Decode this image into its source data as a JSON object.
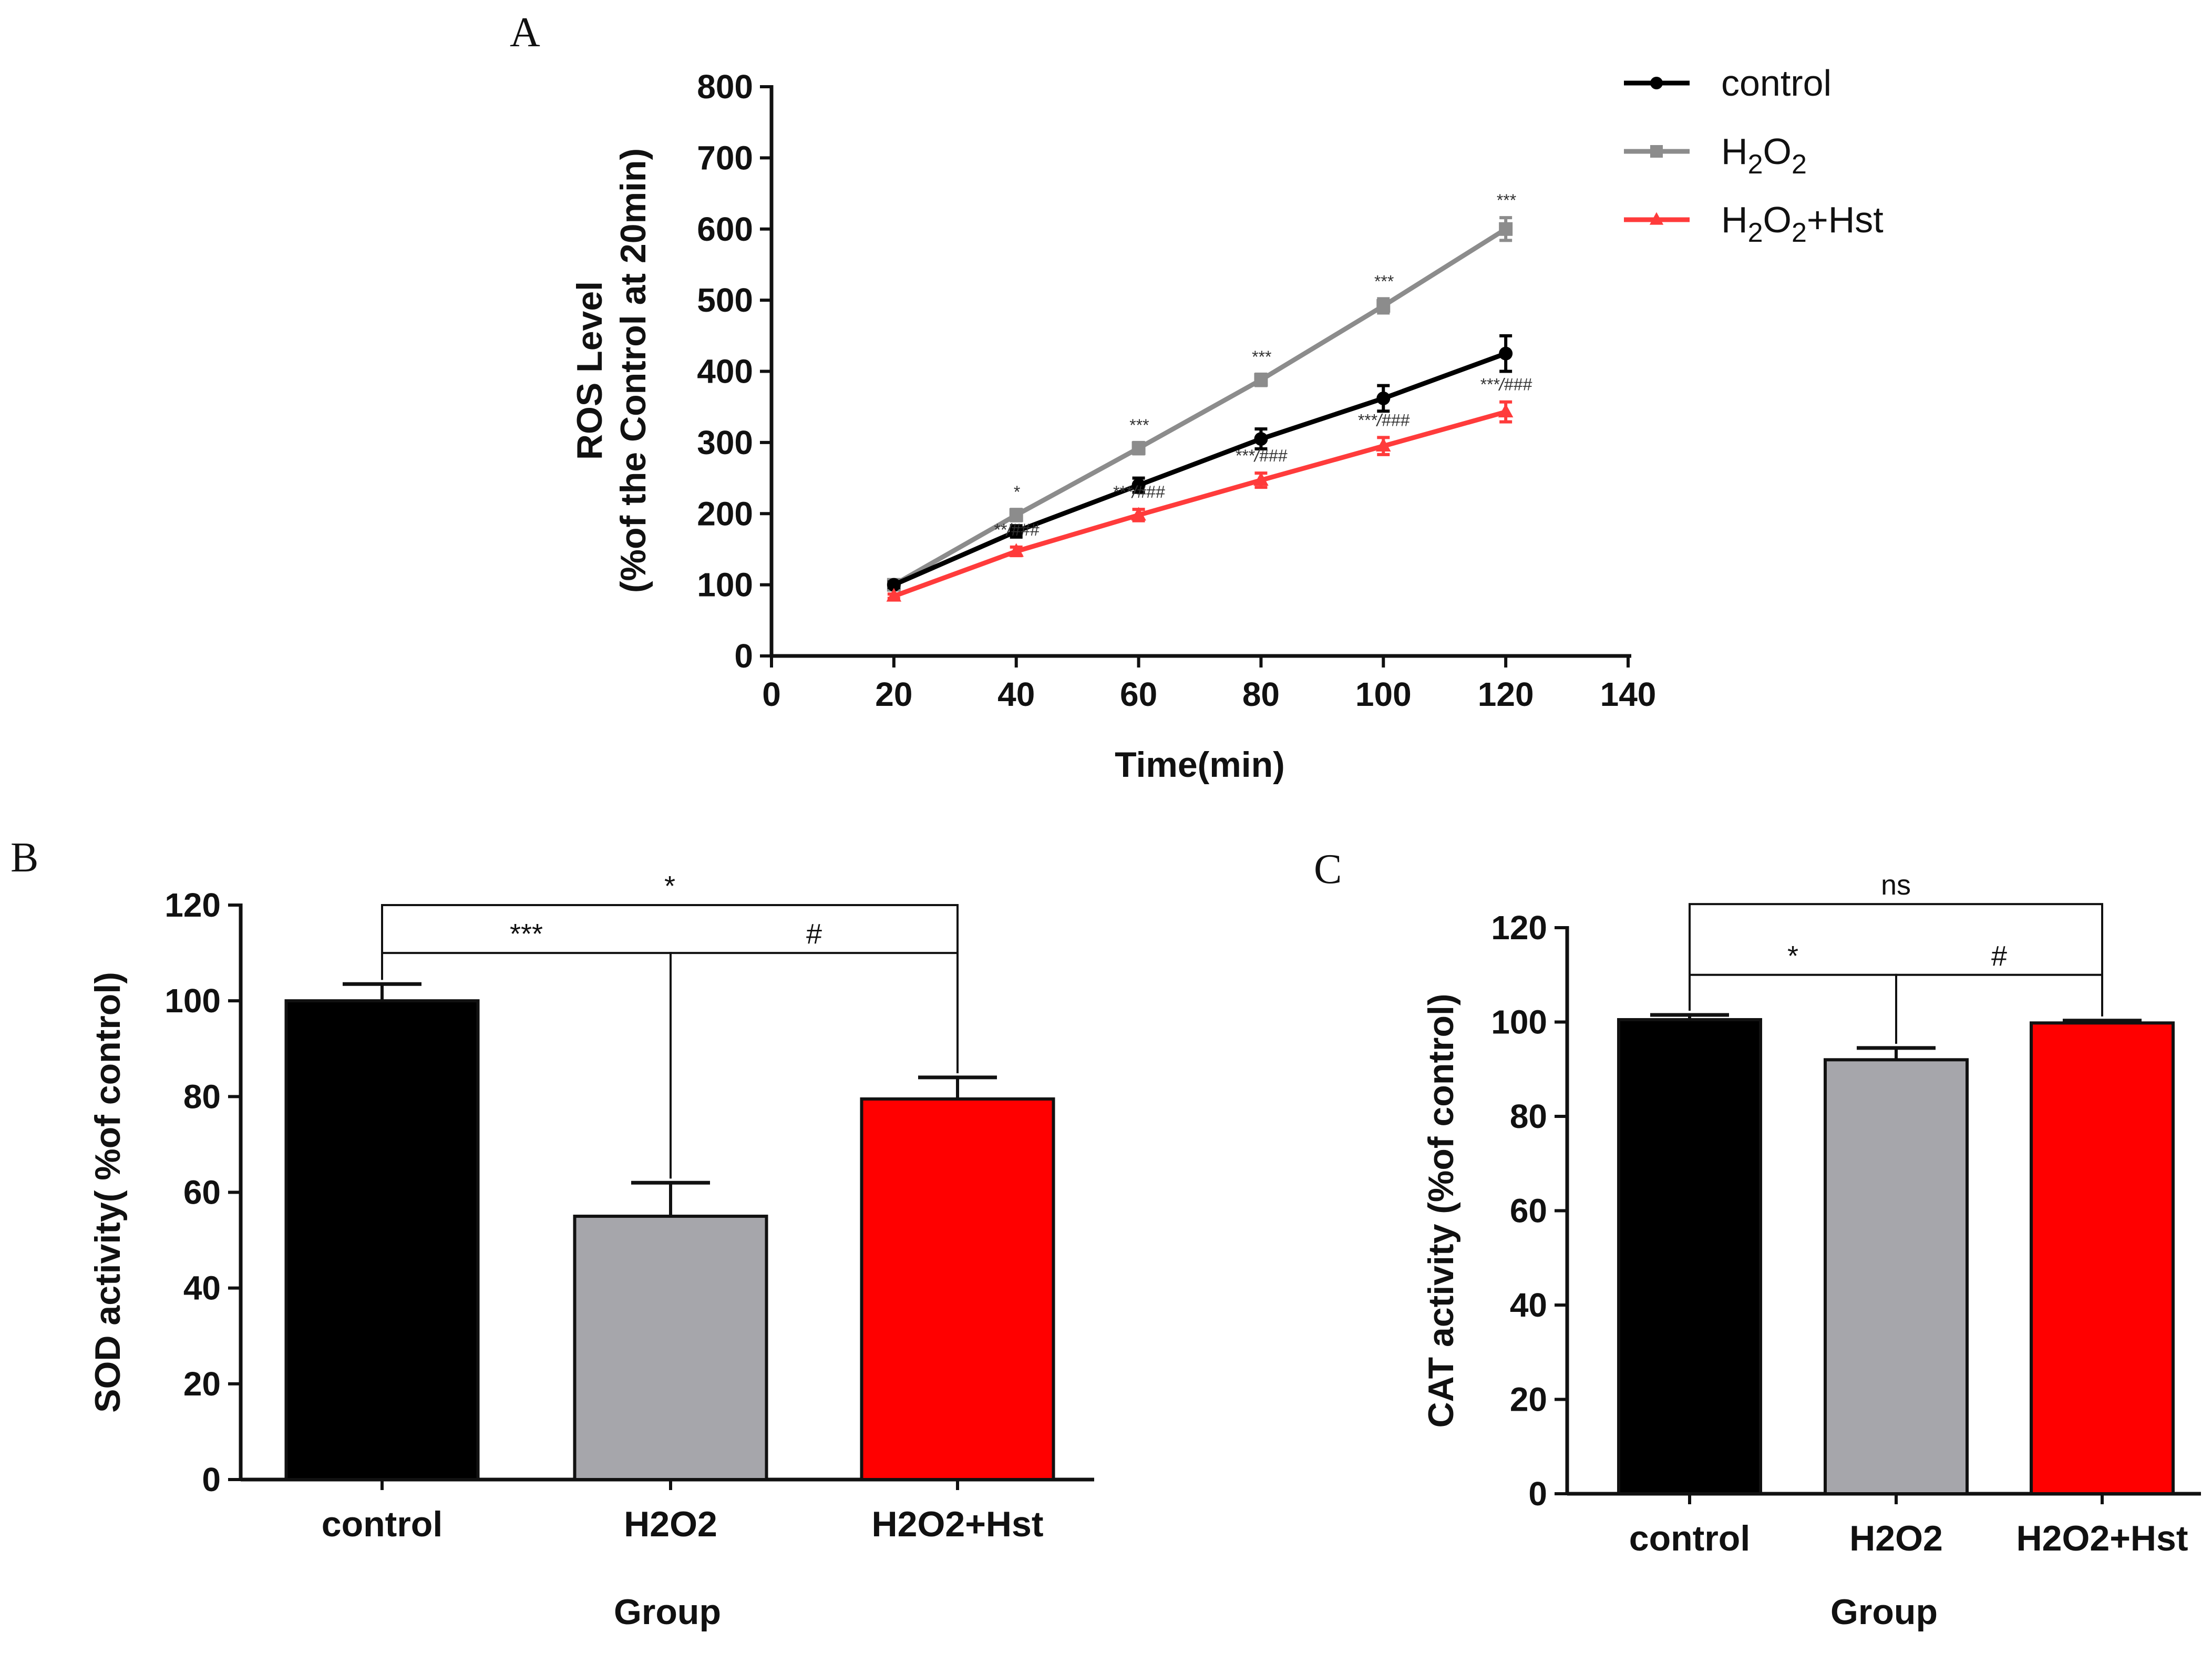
{
  "chart_data": [
    {
      "panel": "A",
      "type": "line",
      "title": "",
      "xlabel": "Time(min)",
      "ylabel_line1": "ROS Level",
      "ylabel_line2": "(%of the Control at 20min)",
      "xlim": [
        0,
        140
      ],
      "ylim": [
        0,
        800
      ],
      "xticks": [
        0,
        20,
        40,
        60,
        80,
        100,
        120,
        140
      ],
      "yticks": [
        0,
        100,
        200,
        300,
        400,
        500,
        600,
        700,
        800
      ],
      "legend_position": "top-right",
      "x": [
        20,
        40,
        60,
        80,
        100,
        120
      ],
      "series": [
        {
          "name": "control",
          "legend_main": "control",
          "legend_sub1": "",
          "legend_mid": "",
          "legend_sub2": "",
          "legend_tail": "",
          "color": "#000000",
          "marker": "circle",
          "values": [
            100,
            175,
            240,
            305,
            362,
            425
          ],
          "errors": [
            4,
            8,
            10,
            14,
            18,
            25
          ],
          "annotations": [
            "",
            "",
            "",
            "",
            "",
            ""
          ]
        },
        {
          "name": "H2O2",
          "legend_main": "H",
          "legend_sub1": "2",
          "legend_mid": "O",
          "legend_sub2": "2",
          "legend_tail": "",
          "color": "#8c8c8c",
          "marker": "square",
          "values": [
            100,
            198,
            292,
            388,
            492,
            600
          ],
          "errors": [
            3,
            8,
            8,
            8,
            10,
            16
          ],
          "annotations": [
            "",
            "*",
            "***",
            "***",
            "***",
            "***"
          ]
        },
        {
          "name": "H2O2+Hst",
          "legend_main": "H",
          "legend_sub1": "2",
          "legend_mid": "O",
          "legend_sub2": "2",
          "legend_tail": "+Hst",
          "color": "#ff3b3b",
          "marker": "triangle",
          "values": [
            84,
            147,
            198,
            247,
            295,
            343
          ],
          "errors": [
            3,
            6,
            8,
            10,
            12,
            14
          ],
          "annotations": [
            "",
            "**/###",
            "***/###",
            "***/###",
            "***/###",
            "***/###"
          ]
        }
      ]
    },
    {
      "panel": "B",
      "type": "bar",
      "title": "",
      "xlabel": "Group",
      "ylabel": "SOD activity( %of control)",
      "ylim": [
        0,
        120
      ],
      "yticks": [
        0,
        20,
        40,
        60,
        80,
        100,
        120
      ],
      "categories": [
        {
          "main": "control",
          "sub1": "",
          "mid": "",
          "sub2": "",
          "tail": ""
        },
        {
          "main": "H",
          "sub1": "2",
          "mid": "O",
          "sub2": "2",
          "tail": ""
        },
        {
          "main": "H",
          "sub1": "2",
          "mid": "O",
          "sub2": "2",
          "tail": "+Hst"
        }
      ],
      "values": [
        100,
        55,
        79.5
      ],
      "errors": [
        3.5,
        7,
        4.5
      ],
      "colors": [
        "#000000",
        "#a6a6ab",
        "#ff0000"
      ],
      "significance": [
        {
          "from": 0,
          "to": 2,
          "level": 120,
          "label": "*"
        },
        {
          "from": 0,
          "to": 1,
          "level": 110,
          "label": "***"
        },
        {
          "from": 1,
          "to": 2,
          "level": 110,
          "label": "#"
        }
      ]
    },
    {
      "panel": "C",
      "type": "bar",
      "title": "",
      "xlabel": "Group",
      "ylabel": "CAT activity (%of control)",
      "ylim": [
        0,
        120
      ],
      "yticks": [
        0,
        20,
        40,
        60,
        80,
        100,
        120
      ],
      "categories": [
        {
          "main": "control",
          "sub1": "",
          "mid": "",
          "sub2": "",
          "tail": ""
        },
        {
          "main": "H",
          "sub1": "2",
          "mid": "O",
          "sub2": "2",
          "tail": ""
        },
        {
          "main": "H",
          "sub1": "2",
          "mid": "O",
          "sub2": "2",
          "tail": "+Hst"
        }
      ],
      "values": [
        100.5,
        92,
        99.8
      ],
      "errors": [
        1,
        2.5,
        0.5
      ],
      "colors": [
        "#000000",
        "#a6a6ab",
        "#ff0000"
      ],
      "significance": [
        {
          "from": 0,
          "to": 2,
          "level": 125,
          "label": "ns"
        },
        {
          "from": 0,
          "to": 1,
          "level": 110,
          "label": "*"
        },
        {
          "from": 1,
          "to": 2,
          "level": 110,
          "label": "#"
        }
      ]
    }
  ]
}
